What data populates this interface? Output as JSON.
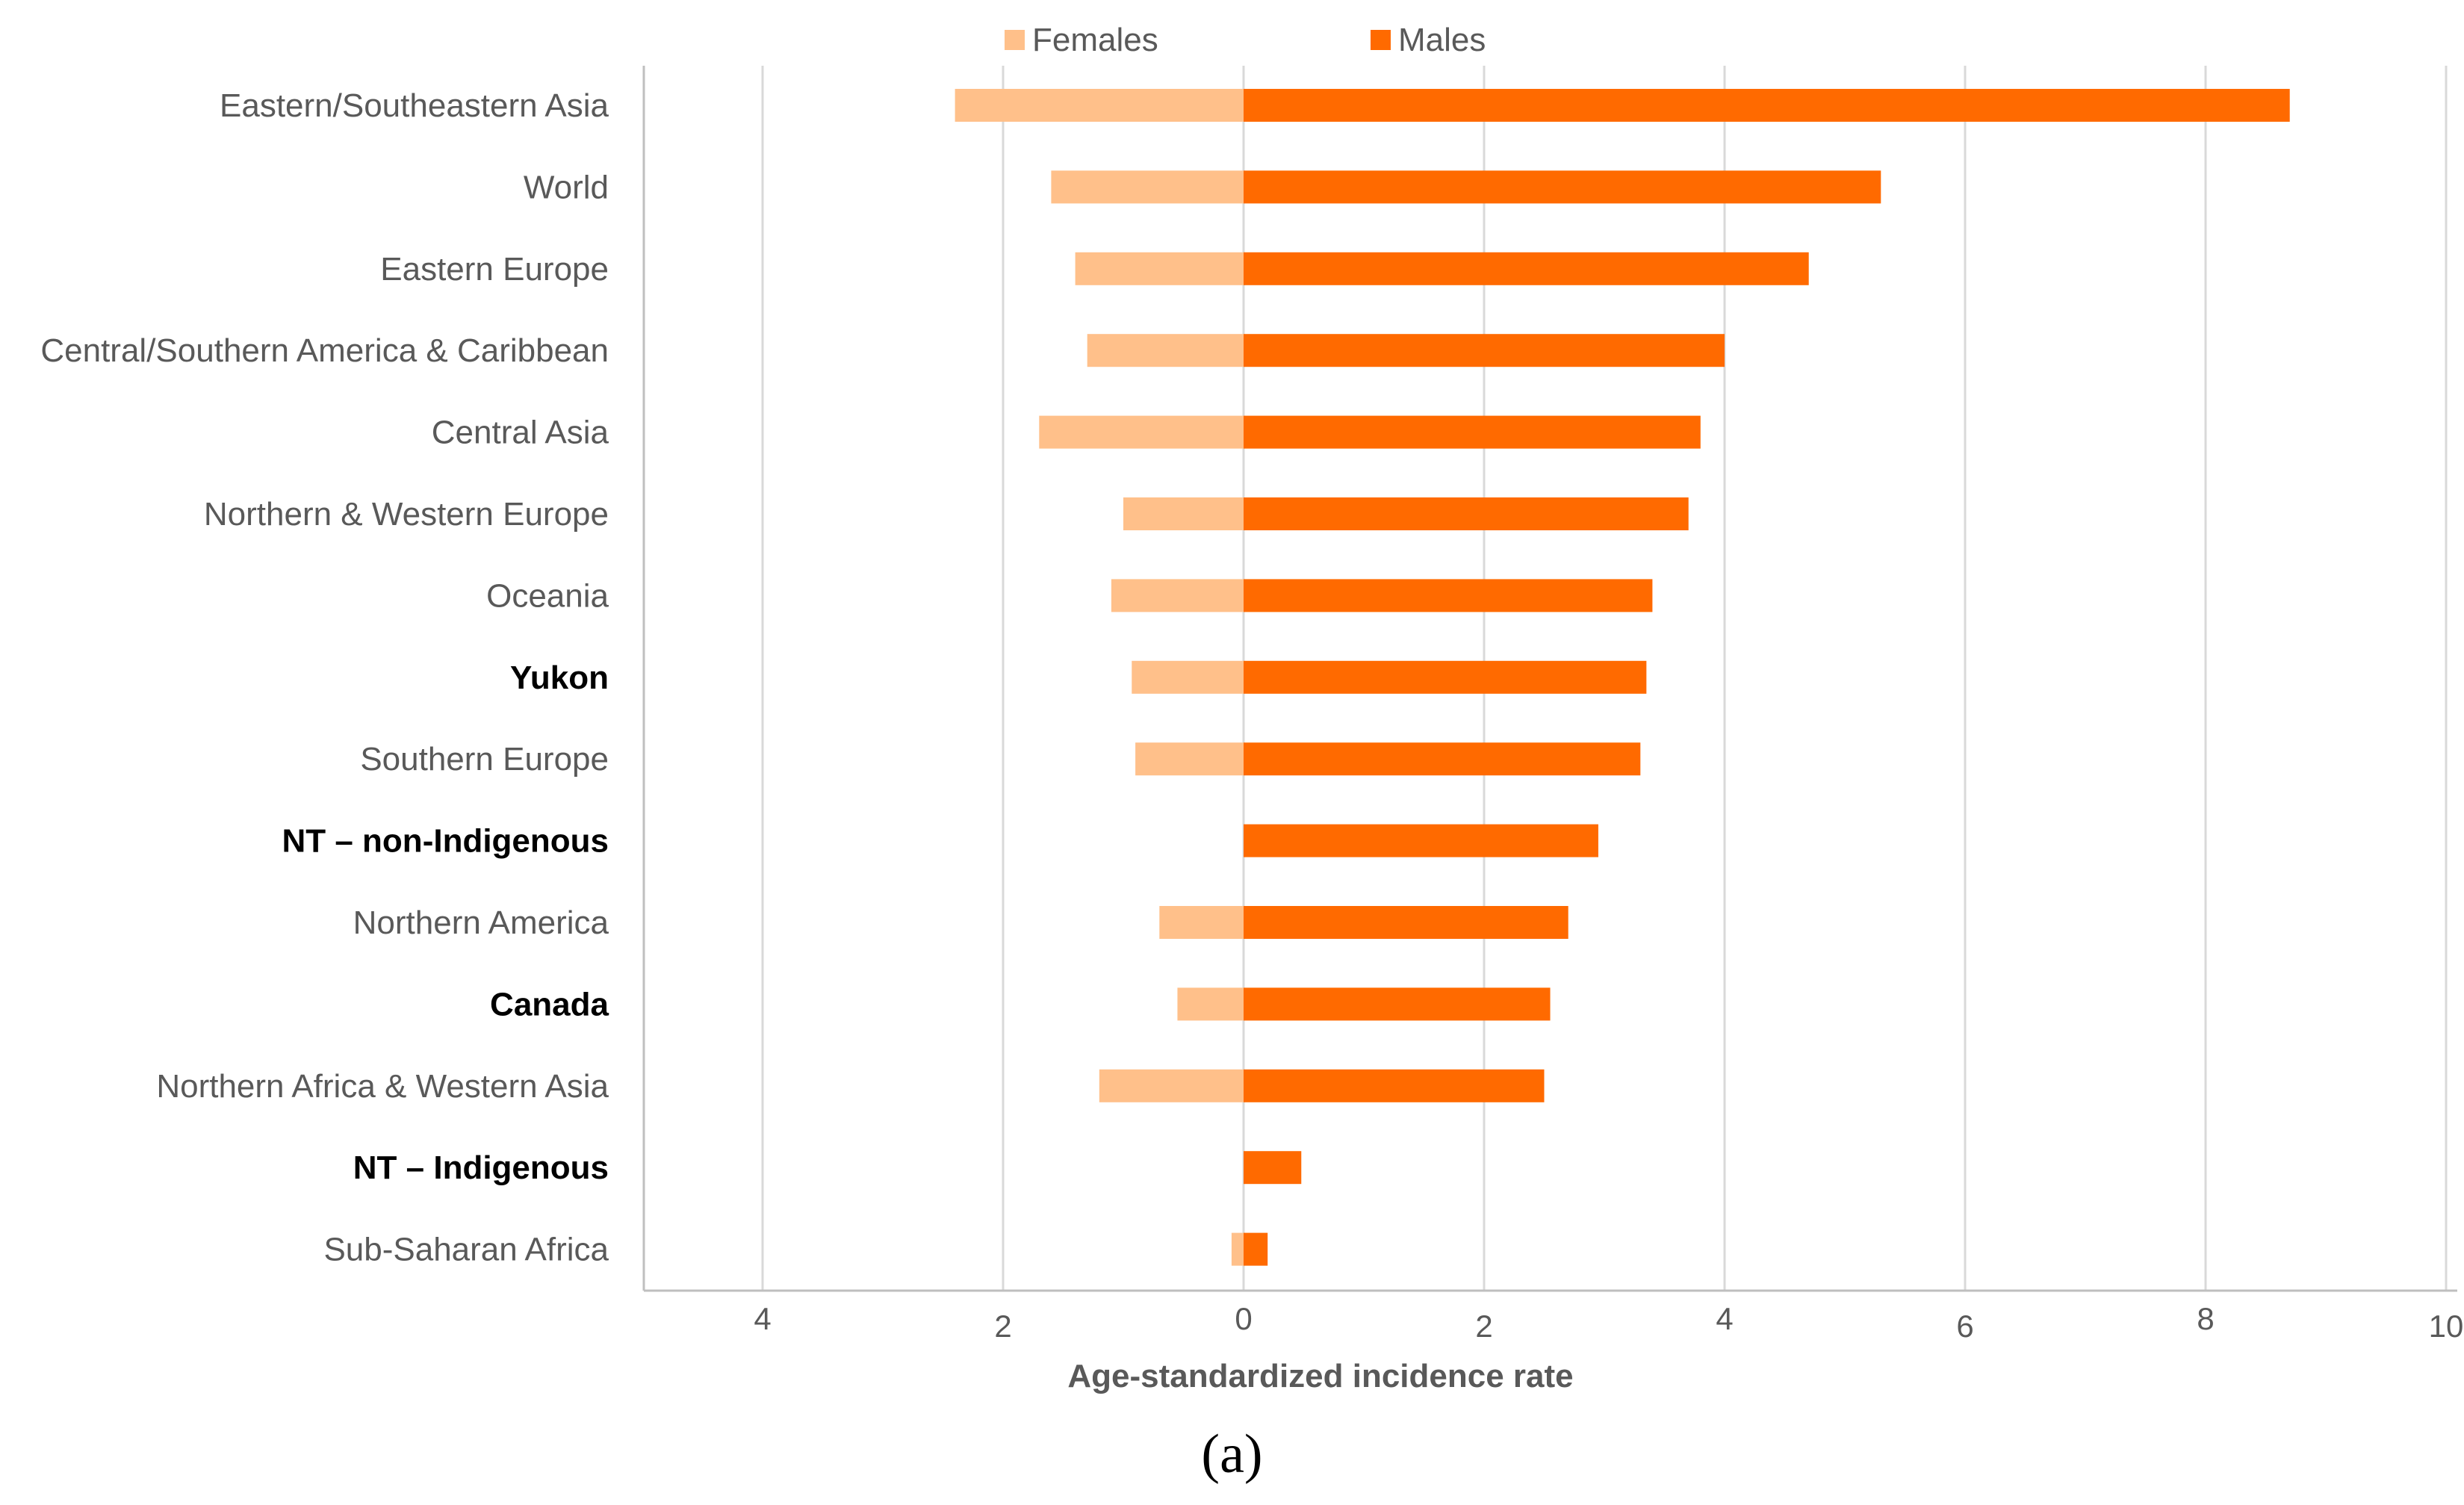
{
  "chart_data": {
    "type": "bar",
    "orientation": "horizontal-diverging",
    "categories": [
      "Eastern/Southeastern Asia",
      "World",
      "Eastern Europe",
      "Central/Southern America & Caribbean",
      "Central Asia",
      "Northern & Western Europe",
      "Oceania",
      "Yukon",
      "Southern Europe",
      "NT – non-Indigenous",
      "Northern America",
      "Canada",
      "Northern Africa & Western Asia",
      "NT – Indigenous",
      "Sub-Saharan Africa"
    ],
    "bold_categories": [
      "Yukon",
      "NT – non-Indigenous",
      "Canada",
      "NT – Indigenous"
    ],
    "series": [
      {
        "name": "Females",
        "color": "#FFC08A",
        "values": [
          2.4,
          1.6,
          1.4,
          1.3,
          1.7,
          1.0,
          1.1,
          0.93,
          0.9,
          0,
          0.7,
          0.55,
          1.2,
          0,
          0.1
        ]
      },
      {
        "name": "Males",
        "color": "#FF6A00",
        "values": [
          8.7,
          5.3,
          4.7,
          4.0,
          3.8,
          3.7,
          3.4,
          3.35,
          3.3,
          2.95,
          2.7,
          2.55,
          2.5,
          0.48,
          0.2
        ]
      }
    ],
    "x_tick_labels": [
      "4",
      "2",
      "0",
      "2",
      "4",
      "6",
      "8",
      "10"
    ],
    "x_tick_values": [
      -4,
      -2,
      0,
      2,
      4,
      6,
      8,
      10
    ],
    "xlim": [
      -5,
      10
    ],
    "gridlines": [
      -4,
      -2,
      0,
      2,
      4,
      6,
      8,
      10
    ],
    "xlabel": "Age-standardized incidence rate",
    "legend_position": "top",
    "grid": true
  },
  "caption": "(a)",
  "colors": {
    "females": "#FFC08A",
    "males": "#FF6A00",
    "gridline": "#D9D9D9",
    "axis": "#BFBFBF",
    "text": "#595959"
  }
}
